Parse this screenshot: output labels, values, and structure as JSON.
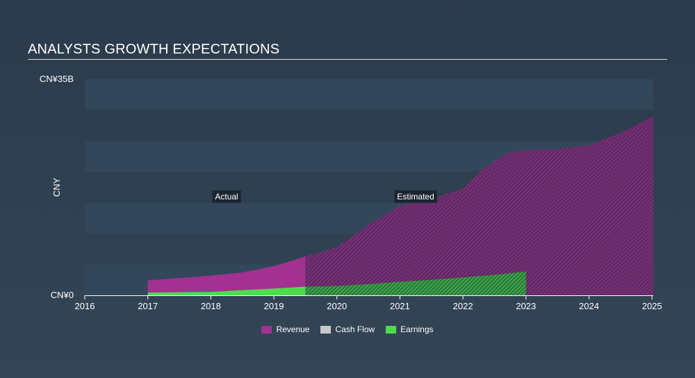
{
  "header": {
    "title": "ANALYSTS GROWTH EXPECTATIONS"
  },
  "colors": {
    "revenue": "#a23191",
    "cash_flow": "#c8c8c8",
    "earnings": "#4cdc4c",
    "band": "#33475a",
    "axis": "#ffffff"
  },
  "chart_data": {
    "type": "area",
    "title": "ANALYSTS GROWTH EXPECTATIONS",
    "ylabel": "CNY",
    "xlabel": "",
    "currency_prefix": "CN¥",
    "xlim": [
      2016,
      2025.02
    ],
    "ylim": [
      0,
      35
    ],
    "y_unit": "B",
    "y_tick_labels": [
      "CN¥0",
      "CN¥35B"
    ],
    "x_ticks": [
      2016,
      2017,
      2018,
      2019,
      2020,
      2021,
      2022,
      2023,
      2024,
      2025
    ],
    "x_tick_labels": [
      "2016",
      "2017",
      "2018",
      "2019",
      "2020",
      "2021",
      "2022",
      "2023",
      "2024",
      "2025"
    ],
    "actual_estimated_split": 2019.5,
    "annotations": [
      {
        "text": "Actual",
        "x": 2018.25,
        "y": 16
      },
      {
        "text": "Estimated",
        "x": 2021.25,
        "y": 16
      }
    ],
    "series": [
      {
        "name": "Revenue",
        "x": [
          2017,
          2017.5,
          2018,
          2018.5,
          2019,
          2019.5,
          2020,
          2020.5,
          2021,
          2021.5,
          2022,
          2022.3,
          2022.7,
          2023,
          2023.5,
          2024,
          2024.5,
          2025.02
        ],
        "values": [
          2.4,
          2.8,
          3.2,
          3.7,
          4.7,
          6.3,
          7.8,
          11.4,
          14.5,
          15.6,
          17.3,
          20.3,
          23.0,
          23.5,
          23.7,
          24.3,
          26.3,
          29.0
        ]
      },
      {
        "name": "Cash Flow",
        "x": [],
        "values": []
      },
      {
        "name": "Earnings",
        "x": [
          2017,
          2017.5,
          2018,
          2018.5,
          2019,
          2019.5,
          2020,
          2020.5,
          2021,
          2021.5,
          2022,
          2022.5,
          2023
        ],
        "values": [
          0.45,
          0.5,
          0.55,
          0.85,
          1.1,
          1.4,
          1.5,
          1.8,
          2.2,
          2.5,
          2.9,
          3.3,
          3.85
        ]
      }
    ]
  },
  "legend": {
    "items": [
      {
        "label": "Revenue",
        "color_key": "revenue"
      },
      {
        "label": "Cash Flow",
        "color_key": "cash_flow"
      },
      {
        "label": "Earnings",
        "color_key": "earnings"
      }
    ]
  }
}
